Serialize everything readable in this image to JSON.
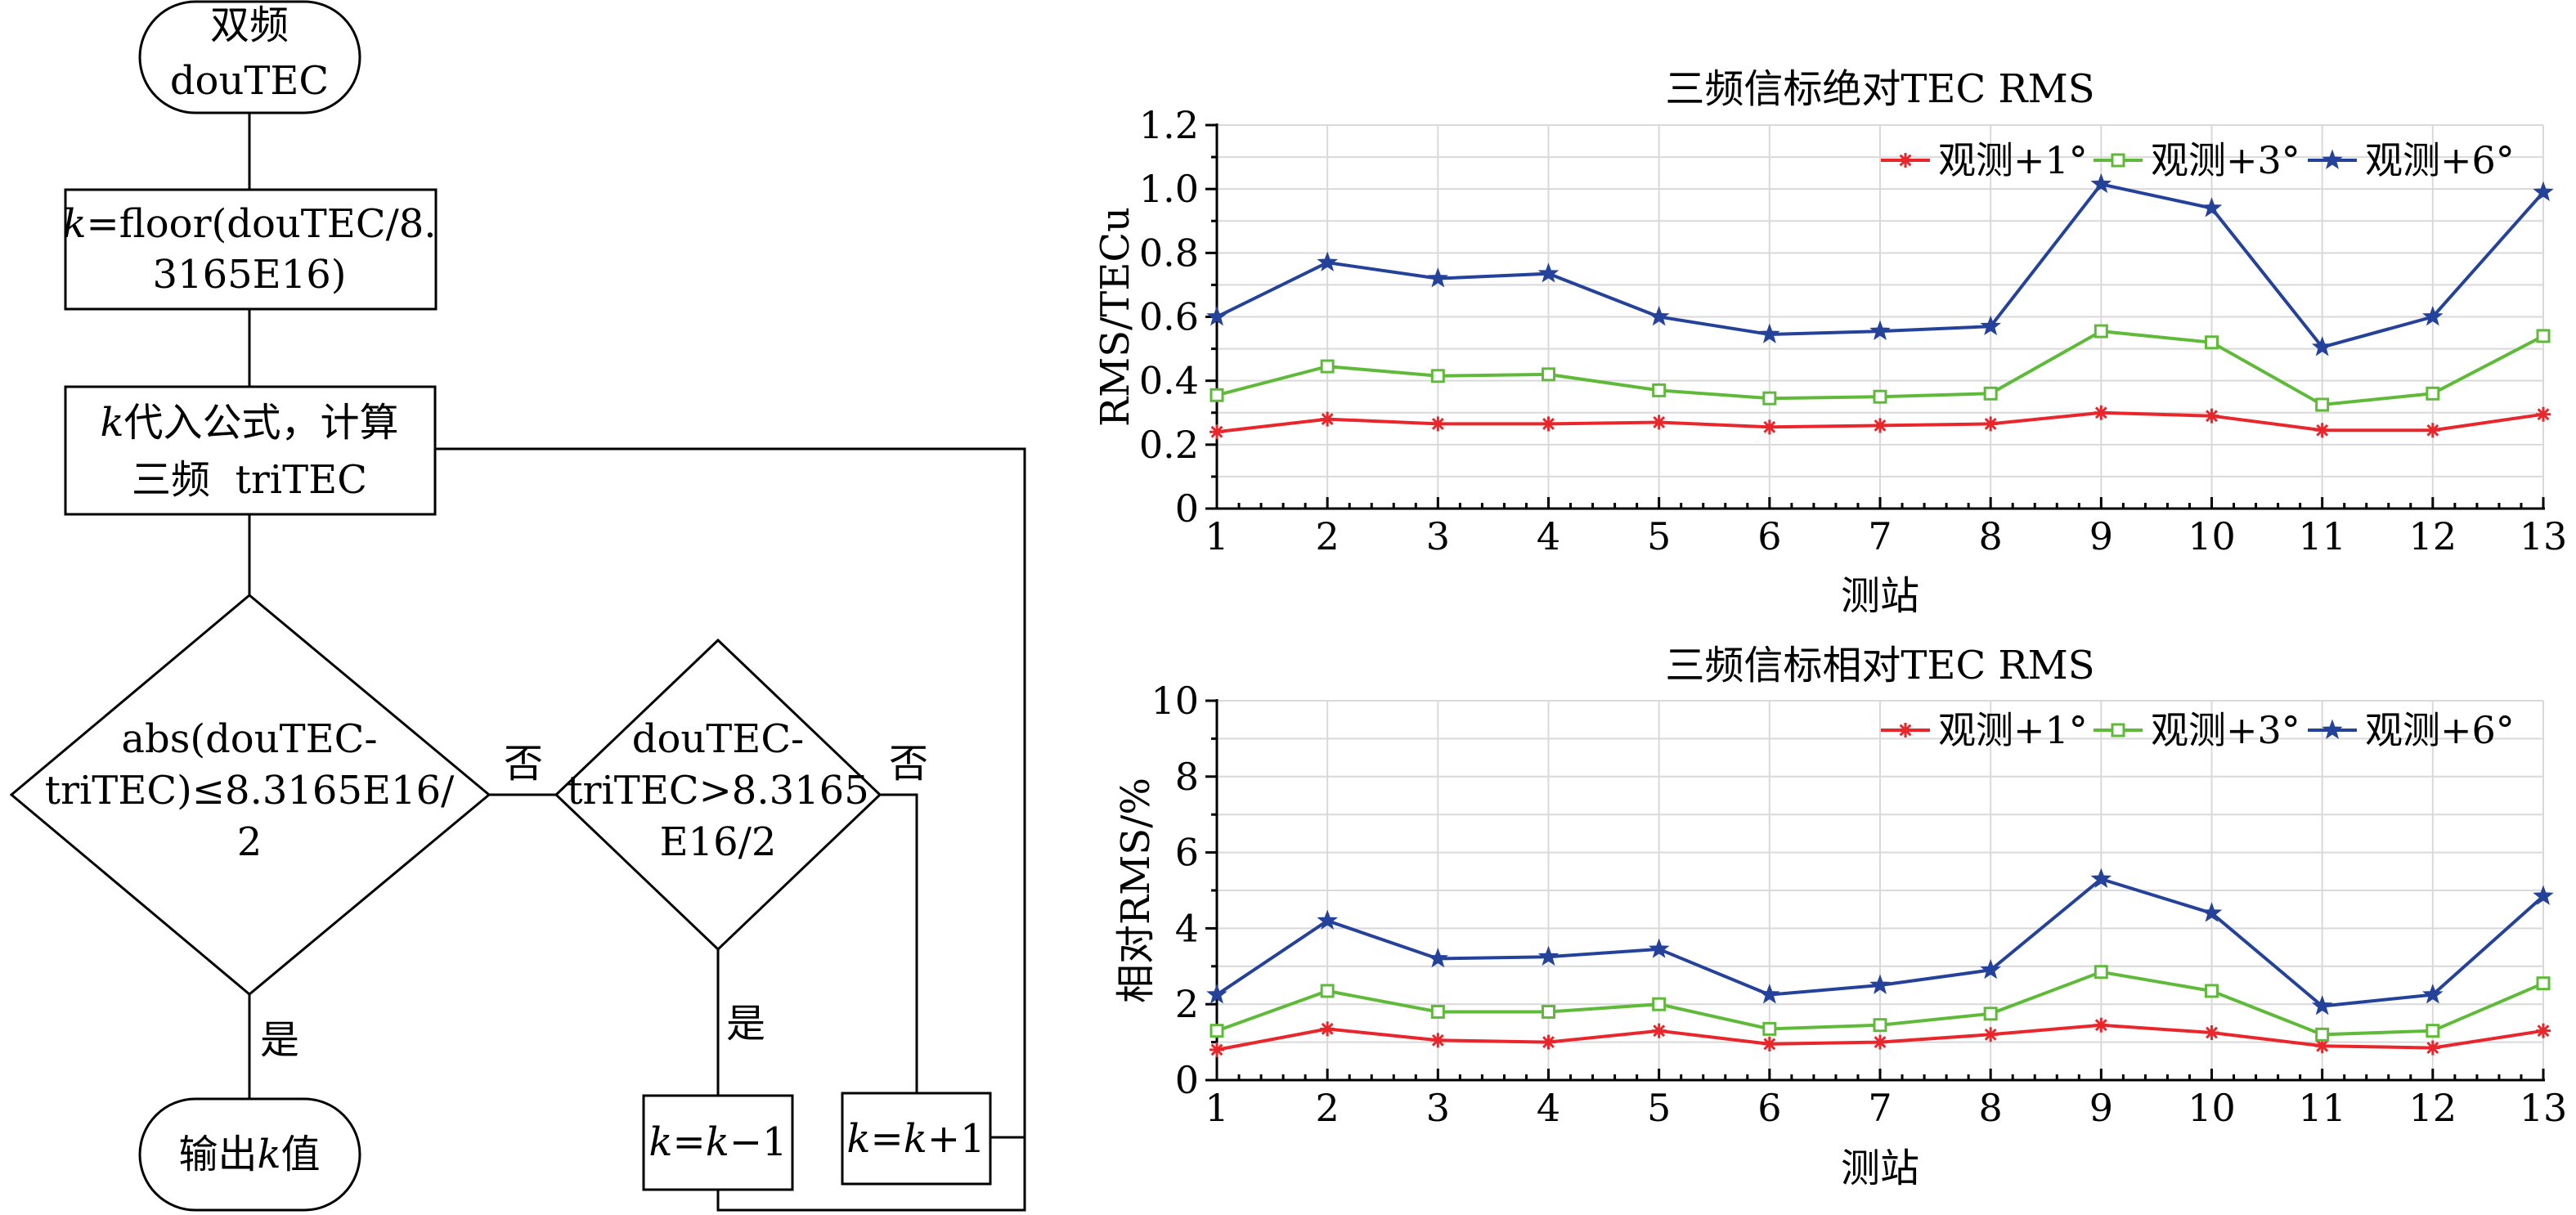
{
  "flowchart": {
    "start_line1": "双频",
    "start_line2": "douTEC",
    "step1_line1_italic": "k",
    "step1_line1_rest": "=floor(douTEC/8.",
    "step1_line2": "3165E16)",
    "step2_line1_italic": "k",
    "step2_line1_rest": "代入公式，计算",
    "step2_line2": "三频  triTEC",
    "cond1_line1": "abs(douTEC-",
    "cond1_line2": "triTEC)≤8.3165E16/",
    "cond1_line3": "2",
    "cond2_line1": "douTEC-",
    "cond2_line2": "triTEC>8.3165",
    "cond2_line3": "E16/2",
    "no_label_1": "否",
    "no_label_2": "否",
    "yes_label_1": "是",
    "yes_label_2": "是",
    "output_pre": "输出",
    "output_italic": "k",
    "output_post": "值",
    "minus_box_k1": "k",
    "minus_box_mid": "=",
    "minus_box_k2": "k",
    "minus_box_rest": "−1",
    "plus_box_k1": "k",
    "plus_box_mid": "=",
    "plus_box_k2": "k",
    "plus_box_rest": "+1"
  },
  "colors": {
    "red": "#e8262b",
    "green": "#5fba3a",
    "blue": "#25429a"
  },
  "chart_data": [
    {
      "type": "line",
      "title": "三频信标绝对TEC RMS",
      "xlabel": "测站",
      "ylabel": "RMS/TECu",
      "categories": [
        "1",
        "2",
        "3",
        "4",
        "5",
        "6",
        "7",
        "8",
        "9",
        "10",
        "11",
        "12",
        "13"
      ],
      "ylim": [
        0,
        1.2
      ],
      "yticks": [
        "0",
        "0.2",
        "0.4",
        "0.6",
        "0.8",
        "1.0",
        "1.2"
      ],
      "legend_position": "top-right",
      "grid": true,
      "series": [
        {
          "name": "观测+1°",
          "color": "#e8262b",
          "marker": "asterisk",
          "values": [
            0.24,
            0.28,
            0.265,
            0.265,
            0.27,
            0.255,
            0.26,
            0.265,
            0.3,
            0.29,
            0.245,
            0.245,
            0.295
          ]
        },
        {
          "name": "观测+3°",
          "color": "#5fba3a",
          "marker": "square",
          "values": [
            0.355,
            0.445,
            0.415,
            0.42,
            0.37,
            0.345,
            0.35,
            0.36,
            0.555,
            0.52,
            0.325,
            0.36,
            0.54
          ]
        },
        {
          "name": "观测+6°",
          "color": "#25429a",
          "marker": "star",
          "values": [
            0.6,
            0.77,
            0.72,
            0.735,
            0.6,
            0.545,
            0.555,
            0.57,
            1.015,
            0.94,
            0.505,
            0.6,
            0.99
          ]
        }
      ]
    },
    {
      "type": "line",
      "title": "三频信标相对TEC RMS",
      "xlabel": "测站",
      "ylabel": "相对RMS/%",
      "categories": [
        "1",
        "2",
        "3",
        "4",
        "5",
        "6",
        "7",
        "8",
        "9",
        "10",
        "11",
        "12",
        "13"
      ],
      "ylim": [
        0,
        10
      ],
      "yticks": [
        "0",
        "2",
        "4",
        "6",
        "8",
        "10"
      ],
      "legend_position": "top-right",
      "grid": true,
      "series": [
        {
          "name": "观测+1°",
          "color": "#e8262b",
          "marker": "asterisk",
          "values": [
            0.8,
            1.35,
            1.05,
            1.0,
            1.3,
            0.95,
            1.0,
            1.2,
            1.45,
            1.25,
            0.9,
            0.85,
            1.3
          ]
        },
        {
          "name": "观测+3°",
          "color": "#5fba3a",
          "marker": "square",
          "values": [
            1.3,
            2.35,
            1.8,
            1.8,
            2.0,
            1.35,
            1.45,
            1.75,
            2.85,
            2.35,
            1.2,
            1.3,
            2.55
          ]
        },
        {
          "name": "观测+6°",
          "color": "#25429a",
          "marker": "star",
          "values": [
            2.25,
            4.2,
            3.2,
            3.25,
            3.45,
            2.25,
            2.5,
            2.9,
            5.3,
            4.4,
            1.95,
            2.25,
            4.85
          ]
        }
      ]
    }
  ]
}
